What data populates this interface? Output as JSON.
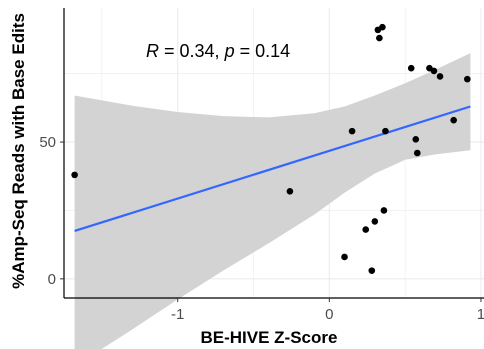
{
  "chart_data": {
    "type": "scatter",
    "xlabel": "BE-HIVE Z-Score",
    "ylabel": "%Amp-Seq Reads with Base Edits",
    "xlim": [
      -1.75,
      1.02
    ],
    "ylim": [
      -7,
      99
    ],
    "x_ticks": [
      {
        "value": -1,
        "label": "-1"
      },
      {
        "value": 0,
        "label": "0"
      },
      {
        "value": 1,
        "label": "1"
      }
    ],
    "y_ticks": [
      {
        "value": 0,
        "label": "0"
      },
      {
        "value": 50,
        "label": "50"
      }
    ],
    "grid": true,
    "annotation": {
      "R": "R",
      "r_value": " = 0.34, ",
      "p": "p",
      "p_value": " = 0.14"
    },
    "points": [
      {
        "x": -1.68,
        "y": 38
      },
      {
        "x": -0.26,
        "y": 32
      },
      {
        "x": 0.1,
        "y": 8
      },
      {
        "x": 0.15,
        "y": 54
      },
      {
        "x": 0.24,
        "y": 18
      },
      {
        "x": 0.28,
        "y": 3
      },
      {
        "x": 0.3,
        "y": 21
      },
      {
        "x": 0.32,
        "y": 91
      },
      {
        "x": 0.33,
        "y": 88
      },
      {
        "x": 0.35,
        "y": 92
      },
      {
        "x": 0.36,
        "y": 25
      },
      {
        "x": 0.37,
        "y": 54
      },
      {
        "x": 0.54,
        "y": 77
      },
      {
        "x": 0.57,
        "y": 51
      },
      {
        "x": 0.58,
        "y": 46
      },
      {
        "x": 0.66,
        "y": 77
      },
      {
        "x": 0.69,
        "y": 76
      },
      {
        "x": 0.73,
        "y": 74
      },
      {
        "x": 0.82,
        "y": 58
      },
      {
        "x": 0.91,
        "y": 73
      }
    ],
    "fit_line": {
      "x": [
        -1.68,
        0.93
      ],
      "y": [
        17.5,
        63
      ]
    },
    "confidence_band": {
      "x": [
        -1.68,
        -1.3,
        -1.0,
        -0.7,
        -0.4,
        -0.1,
        0.1,
        0.3,
        0.5,
        0.7,
        0.93
      ],
      "upper": [
        67,
        63.3,
        61,
        59.5,
        59,
        60.5,
        63,
        67,
        71.5,
        76.5,
        82.5
      ],
      "lower": [
        -32,
        -18.5,
        -7.5,
        3,
        13,
        23.5,
        31.5,
        38.5,
        43.5,
        45.5,
        47
      ]
    },
    "colors": {
      "fit_line": "#3366ff",
      "band": "#d3d3d3",
      "points": "#000000",
      "grid": "#ebebeb"
    }
  }
}
